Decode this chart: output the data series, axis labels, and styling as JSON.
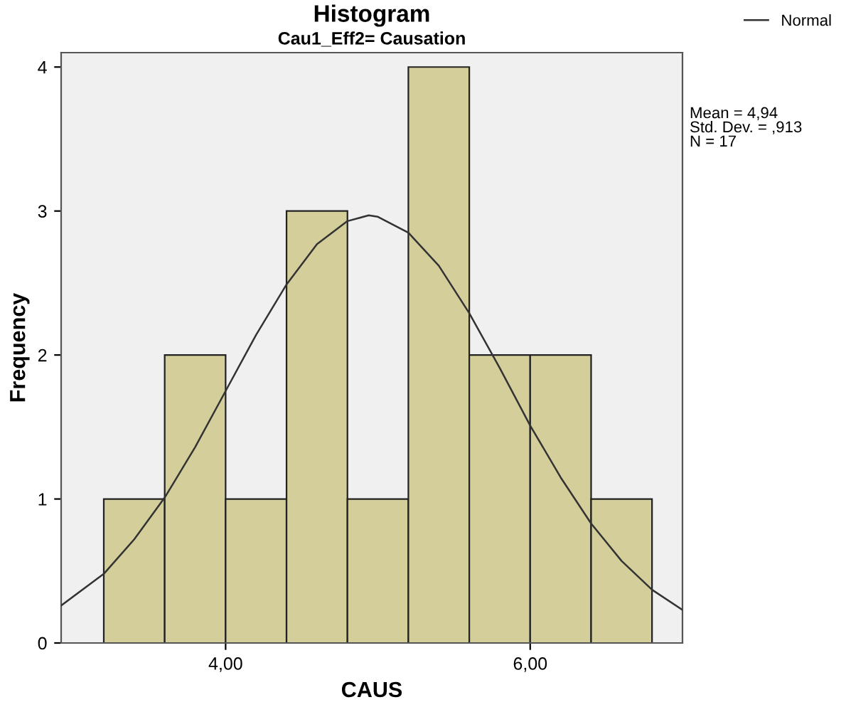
{
  "chart_data": {
    "type": "histogram",
    "title": "Histogram",
    "subtitle": "Cau1_Eff2= Causation",
    "xlabel": "CAUS",
    "ylabel": "Frequency",
    "bins": [
      3.2,
      3.6,
      4.0,
      4.4,
      4.8,
      5.2,
      5.6,
      6.0,
      6.4,
      6.8
    ],
    "values": [
      1,
      2,
      1,
      3,
      1,
      4,
      2,
      2,
      1
    ],
    "color": "#d3ce9a",
    "series": [
      {
        "type": "line",
        "name": "Normal",
        "color": "#333333",
        "x": [
          2.92,
          3.2,
          3.4,
          3.6,
          3.8,
          4.0,
          4.2,
          4.4,
          4.6,
          4.8,
          4.94,
          5.0,
          5.2,
          5.4,
          5.6,
          5.8,
          6.0,
          6.2,
          6.4,
          6.6,
          6.8,
          7.0
        ],
        "values": [
          0.26,
          0.48,
          0.72,
          1.01,
          1.36,
          1.75,
          2.14,
          2.49,
          2.77,
          2.93,
          2.97,
          2.96,
          2.85,
          2.62,
          2.29,
          1.91,
          1.51,
          1.15,
          0.83,
          0.57,
          0.37,
          0.23
        ]
      }
    ],
    "xlim": [
      2.92,
      7.0
    ],
    "ylim": [
      0,
      4.1
    ],
    "xticks": [
      {
        "value": 4,
        "label": "4,00"
      },
      {
        "value": 6,
        "label": "6,00"
      }
    ],
    "yticks": [
      0,
      1,
      2,
      3,
      4
    ],
    "legend": "top right",
    "grid": false,
    "annotations": [
      "Mean = 4,94",
      "Std. Dev. = ,913",
      "N = 17"
    ]
  }
}
